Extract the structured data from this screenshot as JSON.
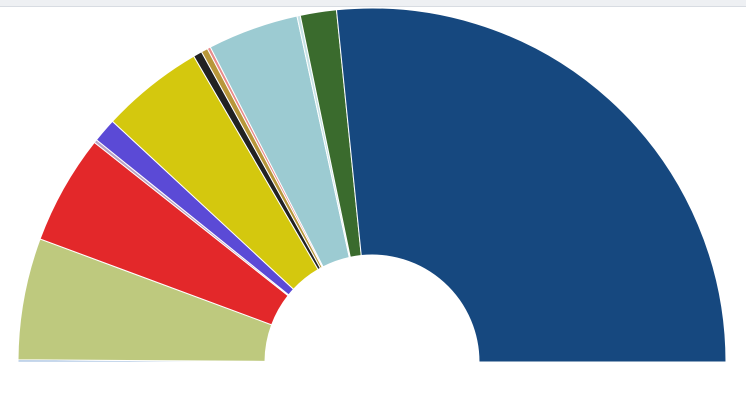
{
  "chart_data": {
    "type": "semidonut",
    "values": [
      0.2,
      11.1,
      10,
      0.3,
      2.2,
      9.4,
      0.8,
      0.6,
      0.3,
      8.3,
      0.3,
      3.3,
      53.2
    ],
    "colors": [
      "#8fb0d8",
      "#bec97e",
      "#e3282a",
      "#b9a3c4",
      "#5b4ad6",
      "#d4c80e",
      "#222222",
      "#b8973a",
      "#e88c8c",
      "#9ccbd2",
      "#c6e2e6",
      "#3a6b2d",
      "#16487f"
    ]
  }
}
